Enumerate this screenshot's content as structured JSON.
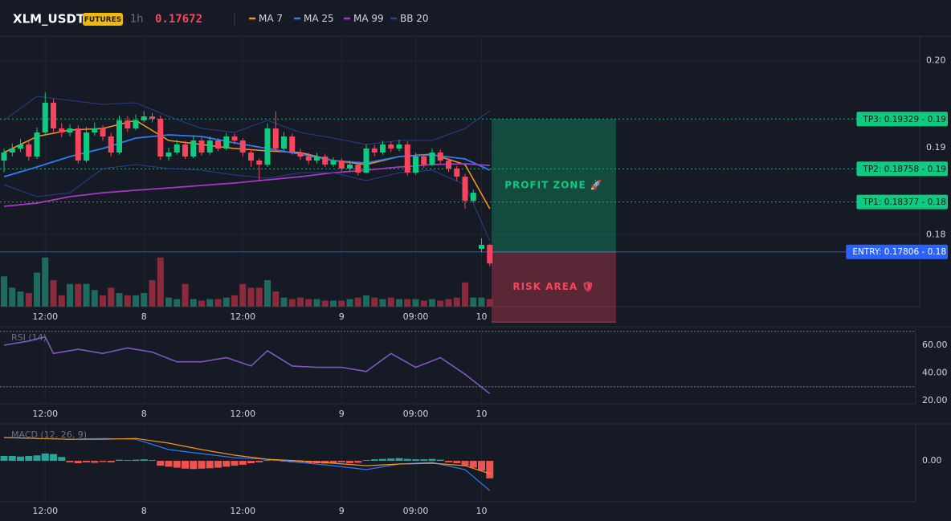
{
  "chart_data": {
    "type": "candlestick",
    "symbol": "XLM_USDT",
    "badge": "FUTURES",
    "interval": "1h",
    "last_price": 0.17672,
    "grid": true,
    "up_color": "#0ecb81",
    "down_color": "#f6465d",
    "xlim": [
      -0.49,
      111.22
    ],
    "xticks": [
      {
        "value": 5,
        "label": "12:00"
      },
      {
        "value": 17,
        "label": "8"
      },
      {
        "value": 29,
        "label": "12:00"
      },
      {
        "value": 41,
        "label": "9"
      },
      {
        "value": 50,
        "label": "09:00"
      },
      {
        "value": 58,
        "label": "10"
      }
    ],
    "ylim": [
      0.17177,
      0.2028
    ],
    "yticks": [
      0.18,
      0.19,
      {
        "value": 0.2,
        "label": "0.20"
      }
    ],
    "candles": [
      [
        0.18853,
        0.1899,
        0.1872,
        0.18945
      ],
      [
        0.18945,
        0.1905,
        0.189,
        0.18991
      ],
      [
        0.18991,
        0.191,
        0.1895,
        0.19037
      ],
      [
        0.19037,
        0.1908,
        0.1885,
        0.18899
      ],
      [
        0.18899,
        0.1923,
        0.1887,
        0.19175
      ],
      [
        0.19175,
        0.19635,
        0.1915,
        0.19516
      ],
      [
        0.19516,
        0.1956,
        0.1918,
        0.19221
      ],
      [
        0.19221,
        0.1928,
        0.1912,
        0.19175
      ],
      [
        0.19175,
        0.1927,
        0.1913,
        0.19221
      ],
      [
        0.19221,
        0.1926,
        0.1882,
        0.18853
      ],
      [
        0.18853,
        0.1924,
        0.1883,
        0.19175
      ],
      [
        0.19175,
        0.1929,
        0.1914,
        0.19221
      ],
      [
        0.19221,
        0.1926,
        0.1908,
        0.19129
      ],
      [
        0.19129,
        0.1917,
        0.189,
        0.18945
      ],
      [
        0.18945,
        0.1937,
        0.1892,
        0.19313
      ],
      [
        0.19313,
        0.1936,
        0.1918,
        0.19221
      ],
      [
        0.19221,
        0.1938,
        0.192,
        0.19313
      ],
      [
        0.19313,
        0.1942,
        0.1929,
        0.19359
      ],
      [
        0.19359,
        0.194,
        0.1929,
        0.19332
      ],
      [
        0.19332,
        0.1937,
        0.1886,
        0.18899
      ],
      [
        0.18899,
        0.19,
        0.1885,
        0.18945
      ],
      [
        0.18945,
        0.1909,
        0.1892,
        0.19037
      ],
      [
        0.19037,
        0.1908,
        0.1887,
        0.18899
      ],
      [
        0.18899,
        0.1914,
        0.1888,
        0.19083
      ],
      [
        0.19083,
        0.1912,
        0.1891,
        0.18945
      ],
      [
        0.18945,
        0.1913,
        0.1892,
        0.19083
      ],
      [
        0.19083,
        0.1911,
        0.1896,
        0.18991
      ],
      [
        0.18991,
        0.1917,
        0.1897,
        0.19129
      ],
      [
        0.19129,
        0.1916,
        0.1904,
        0.19083
      ],
      [
        0.19083,
        0.1911,
        0.189,
        0.18945
      ],
      [
        0.18945,
        0.1898,
        0.1878,
        0.18853
      ],
      [
        0.18853,
        0.1888,
        0.1862,
        0.18807
      ],
      [
        0.18807,
        0.1928,
        0.1878,
        0.19221
      ],
      [
        0.19221,
        0.1942,
        0.1896,
        0.18991
      ],
      [
        0.18991,
        0.1918,
        0.1896,
        0.19129
      ],
      [
        0.19129,
        0.1916,
        0.1892,
        0.18945
      ],
      [
        0.18945,
        0.1899,
        0.1886,
        0.18899
      ],
      [
        0.18899,
        0.1894,
        0.1881,
        0.18853
      ],
      [
        0.18853,
        0.1894,
        0.1882,
        0.18899
      ],
      [
        0.18899,
        0.1893,
        0.1878,
        0.18807
      ],
      [
        0.18807,
        0.1889,
        0.1878,
        0.18853
      ],
      [
        0.18853,
        0.1888,
        0.1873,
        0.18761
      ],
      [
        0.18761,
        0.1885,
        0.1873,
        0.18807
      ],
      [
        0.18807,
        0.1883,
        0.1868,
        0.18714
      ],
      [
        0.18714,
        0.1904,
        0.187,
        0.18991
      ],
      [
        0.18991,
        0.1903,
        0.189,
        0.18945
      ],
      [
        0.18945,
        0.1908,
        0.1892,
        0.19037
      ],
      [
        0.19037,
        0.1907,
        0.1895,
        0.18991
      ],
      [
        0.18991,
        0.1909,
        0.1896,
        0.19037
      ],
      [
        0.19037,
        0.1907,
        0.1868,
        0.18714
      ],
      [
        0.18714,
        0.1894,
        0.1869,
        0.18899
      ],
      [
        0.18899,
        0.1893,
        0.1877,
        0.18807
      ],
      [
        0.18807,
        0.1899,
        0.1879,
        0.18945
      ],
      [
        0.18945,
        0.1898,
        0.1882,
        0.18853
      ],
      [
        0.18853,
        0.1888,
        0.1872,
        0.18761
      ],
      [
        0.18761,
        0.1879,
        0.1862,
        0.18668
      ],
      [
        0.18668,
        0.187,
        0.183,
        0.18392
      ],
      [
        0.18392,
        0.1852,
        0.1837,
        0.18484
      ],
      [
        0.1784,
        0.1796,
        0.178,
        0.17886
      ],
      [
        0.17886,
        0.179,
        0.1764,
        0.17672
      ]
    ],
    "volume": {
      "ylim": [
        0,
        70
      ],
      "up_color": "#1d6b5f",
      "down_color": "#8c2a3c",
      "values": [
        40,
        25,
        20,
        18,
        45,
        65,
        35,
        15,
        30,
        30,
        30,
        22,
        15,
        25,
        18,
        15,
        15,
        18,
        35,
        65,
        12,
        10,
        30,
        10,
        8,
        10,
        10,
        12,
        15,
        30,
        25,
        25,
        35,
        20,
        12,
        10,
        12,
        10,
        10,
        8,
        8,
        8,
        10,
        12,
        15,
        12,
        10,
        12,
        10,
        10,
        10,
        8,
        10,
        8,
        10,
        12,
        32,
        12,
        12,
        10
      ]
    },
    "indicators": [
      {
        "name": "MA 7",
        "color": "#f7931a",
        "x": [
          0,
          4,
          8,
          12,
          16,
          20,
          24,
          28,
          32,
          36,
          40,
          44,
          48,
          52,
          56,
          59
        ],
        "values": [
          0.18945,
          0.19129,
          0.19203,
          0.19221,
          0.19313,
          0.19083,
          0.19037,
          0.18991,
          0.18963,
          0.18945,
          0.18853,
          0.18807,
          0.18899,
          0.18926,
          0.18807,
          0.183
        ]
      },
      {
        "name": "MA 25",
        "color": "#2f7bf5",
        "x": [
          0,
          4,
          8,
          12,
          16,
          20,
          24,
          28,
          32,
          36,
          40,
          44,
          48,
          52,
          56,
          59
        ],
        "values": [
          0.18668,
          0.18779,
          0.18899,
          0.18991,
          0.19111,
          0.19147,
          0.19129,
          0.19055,
          0.18991,
          0.18926,
          0.18853,
          0.18825,
          0.18899,
          0.18917,
          0.18871,
          0.18742
        ]
      },
      {
        "name": "MA 99",
        "color": "#a23bc4",
        "x": [
          0,
          4,
          8,
          12,
          16,
          20,
          24,
          28,
          32,
          36,
          40,
          44,
          48,
          52,
          56,
          59
        ],
        "values": [
          0.18328,
          0.18365,
          0.18438,
          0.18484,
          0.18512,
          0.18539,
          0.18567,
          0.18595,
          0.18632,
          0.18668,
          0.18714,
          0.18742,
          0.18779,
          0.18807,
          0.18816,
          0.18797
        ]
      },
      {
        "name": "BB 20",
        "color": "#2a3f8f",
        "x": [
          0,
          4,
          8,
          12,
          16,
          20,
          24,
          28,
          32,
          36,
          40,
          44,
          48,
          52,
          56,
          59
        ],
        "upper": [
          0.19313,
          0.19589,
          0.19543,
          0.19497,
          0.19516,
          0.19359,
          0.19221,
          0.19175,
          0.19313,
          0.19175,
          0.19111,
          0.19037,
          0.19083,
          0.19083,
          0.19221,
          0.19424
        ],
        "lower": [
          0.18576,
          0.18438,
          0.18484,
          0.18761,
          0.18807,
          0.18761,
          0.18742,
          0.18687,
          0.1865,
          0.18714,
          0.18714,
          0.18622,
          0.18714,
          0.18742,
          0.18576,
          0.17932
        ]
      }
    ],
    "levels": [
      {
        "label": "TP3: 0.19329 - 0.19",
        "value": 0.19329,
        "color": "#0ecb81"
      },
      {
        "label": "TP2: 0.18758 - 0.19",
        "value": 0.18758,
        "color": "#0ecb81"
      },
      {
        "label": "TP1: 0.18377 - 0.18",
        "value": 0.18377,
        "color": "#0ecb81"
      },
      {
        "label": "ENTRY: 0.17806 - 0.18",
        "value": 0.17806,
        "color": "#2962ff"
      }
    ],
    "zones": [
      {
        "label": "PROFIT ZONE 🚀",
        "top": 0.19329,
        "bottom": 0.17806,
        "color": "#0ecb81"
      },
      {
        "label": "RISK AREA 🛡",
        "top": 0.17806,
        "bottom": 0.17,
        "color": "#f6465d"
      }
    ],
    "rsi": {
      "title": "RSI (14)",
      "color": "#7e57c2",
      "ylim": [
        17.7,
        73.3
      ],
      "yticks": [
        {
          "value": 60,
          "label": "60.00"
        },
        {
          "value": 40,
          "label": "40.00"
        },
        {
          "value": 20,
          "label": "20.00"
        }
      ],
      "bands": [
        70,
        30
      ],
      "x": [
        0,
        3,
        5,
        6,
        9,
        12,
        15,
        18,
        21,
        24,
        27,
        30,
        32,
        35,
        38,
        41,
        44,
        47,
        50,
        53,
        56,
        59
      ],
      "values": [
        60,
        63,
        66,
        54,
        57,
        54,
        58,
        55,
        48,
        48,
        51,
        45,
        56,
        45,
        44,
        44,
        41,
        54,
        44,
        51,
        39,
        25
      ]
    },
    "macd": {
      "title": "MACD (12, 26, 9)",
      "ylim": [
        -0.0021,
        0.0019
      ],
      "yticks": [
        {
          "value": 0,
          "label": "0.00"
        }
      ],
      "macd_color": "#2f7bf5",
      "signal_color": "#f7931a",
      "pos_color": "#26a69a",
      "neg_color": "#ef5350",
      "x": [
        0,
        4,
        8,
        12,
        16,
        20,
        24,
        28,
        32,
        36,
        40,
        44,
        48,
        52,
        56,
        59
      ],
      "macd": [
        0.0012,
        0.00115,
        0.00111,
        0.00115,
        0.00111,
        0.00058,
        0.00037,
        0.00016,
        8e-05,
        -8e-05,
        -0.00025,
        -0.00045,
        -0.00016,
        -8e-05,
        -0.00045,
        -0.00153
      ],
      "signal": [
        0.0012,
        0.00115,
        0.00111,
        0.00111,
        0.00115,
        0.00091,
        0.00058,
        0.00029,
        8e-05,
        0,
        -0.00012,
        -0.00025,
        -0.00016,
        -0.00012,
        -0.00025,
        -0.00066
      ],
      "histogram": [
        0.00025,
        0.00025,
        0.00022,
        0.00025,
        0.00028,
        0.00038,
        0.00035,
        0.0002,
        -8e-05,
        -0.00012,
        -8e-05,
        -0.0001,
        -6e-05,
        -8e-05,
        6e-05,
        4e-05,
        6e-05,
        8e-05,
        4e-05,
        -0.00025,
        -0.0003,
        -0.00035,
        -0.0004,
        -0.00042,
        -0.0004,
        -0.00038,
        -0.00035,
        -0.0003,
        -0.00025,
        -0.0002,
        -0.00012,
        -8e-05,
        4e-05,
        2e-05,
        -4e-05,
        -8e-05,
        -0.0001,
        -0.00012,
        -0.00012,
        -0.00014,
        -0.0001,
        -8e-05,
        -0.00012,
        -0.0001,
        4e-05,
        8e-05,
        0.0001,
        0.00012,
        0.00014,
        0.0001,
        8e-05,
        8e-05,
        0.0001,
        6e-05,
        -8e-05,
        -0.00012,
        -0.00025,
        -0.00035,
        -0.0005,
        -0.0009
      ]
    }
  }
}
